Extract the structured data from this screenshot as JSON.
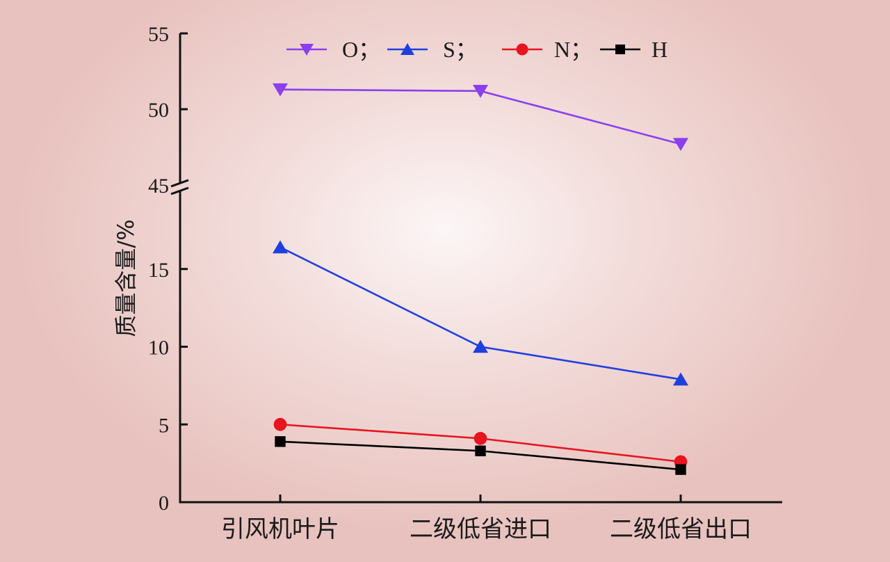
{
  "chart_data": {
    "type": "line",
    "title": "",
    "xlabel": "",
    "ylabel": "质量含量/%",
    "categories": [
      "引风机叶片",
      "二级低省进口",
      "二级低省出口"
    ],
    "series": [
      {
        "name": "O",
        "legend_label": "O；",
        "marker": "triangle-down",
        "color": "#8a3ff0",
        "values": [
          51.3,
          51.2,
          47.7
        ]
      },
      {
        "name": "S",
        "legend_label": "S；",
        "marker": "triangle-up",
        "color": "#1f3fe0",
        "values": [
          16.4,
          10.0,
          7.9
        ]
      },
      {
        "name": "N",
        "legend_label": "N；",
        "marker": "circle",
        "color": "#e8141e",
        "values": [
          5.0,
          4.1,
          2.6
        ]
      },
      {
        "name": "H",
        "legend_label": "H",
        "marker": "square",
        "color": "#000000",
        "values": [
          3.9,
          3.3,
          2.1
        ]
      }
    ],
    "y_axis": {
      "broken": true,
      "lower_segment": {
        "range": [
          0,
          17.5
        ],
        "ticks": [
          0,
          5,
          10,
          15
        ]
      },
      "upper_segment": {
        "range": [
          45,
          55
        ],
        "ticks": [
          45,
          50,
          55
        ]
      }
    },
    "tick_labels": {
      "y_lower": [
        "0",
        "5",
        "10",
        "15"
      ],
      "y_upper": [
        "45",
        "50",
        "55"
      ]
    },
    "grid": false,
    "legend_position": "top"
  }
}
